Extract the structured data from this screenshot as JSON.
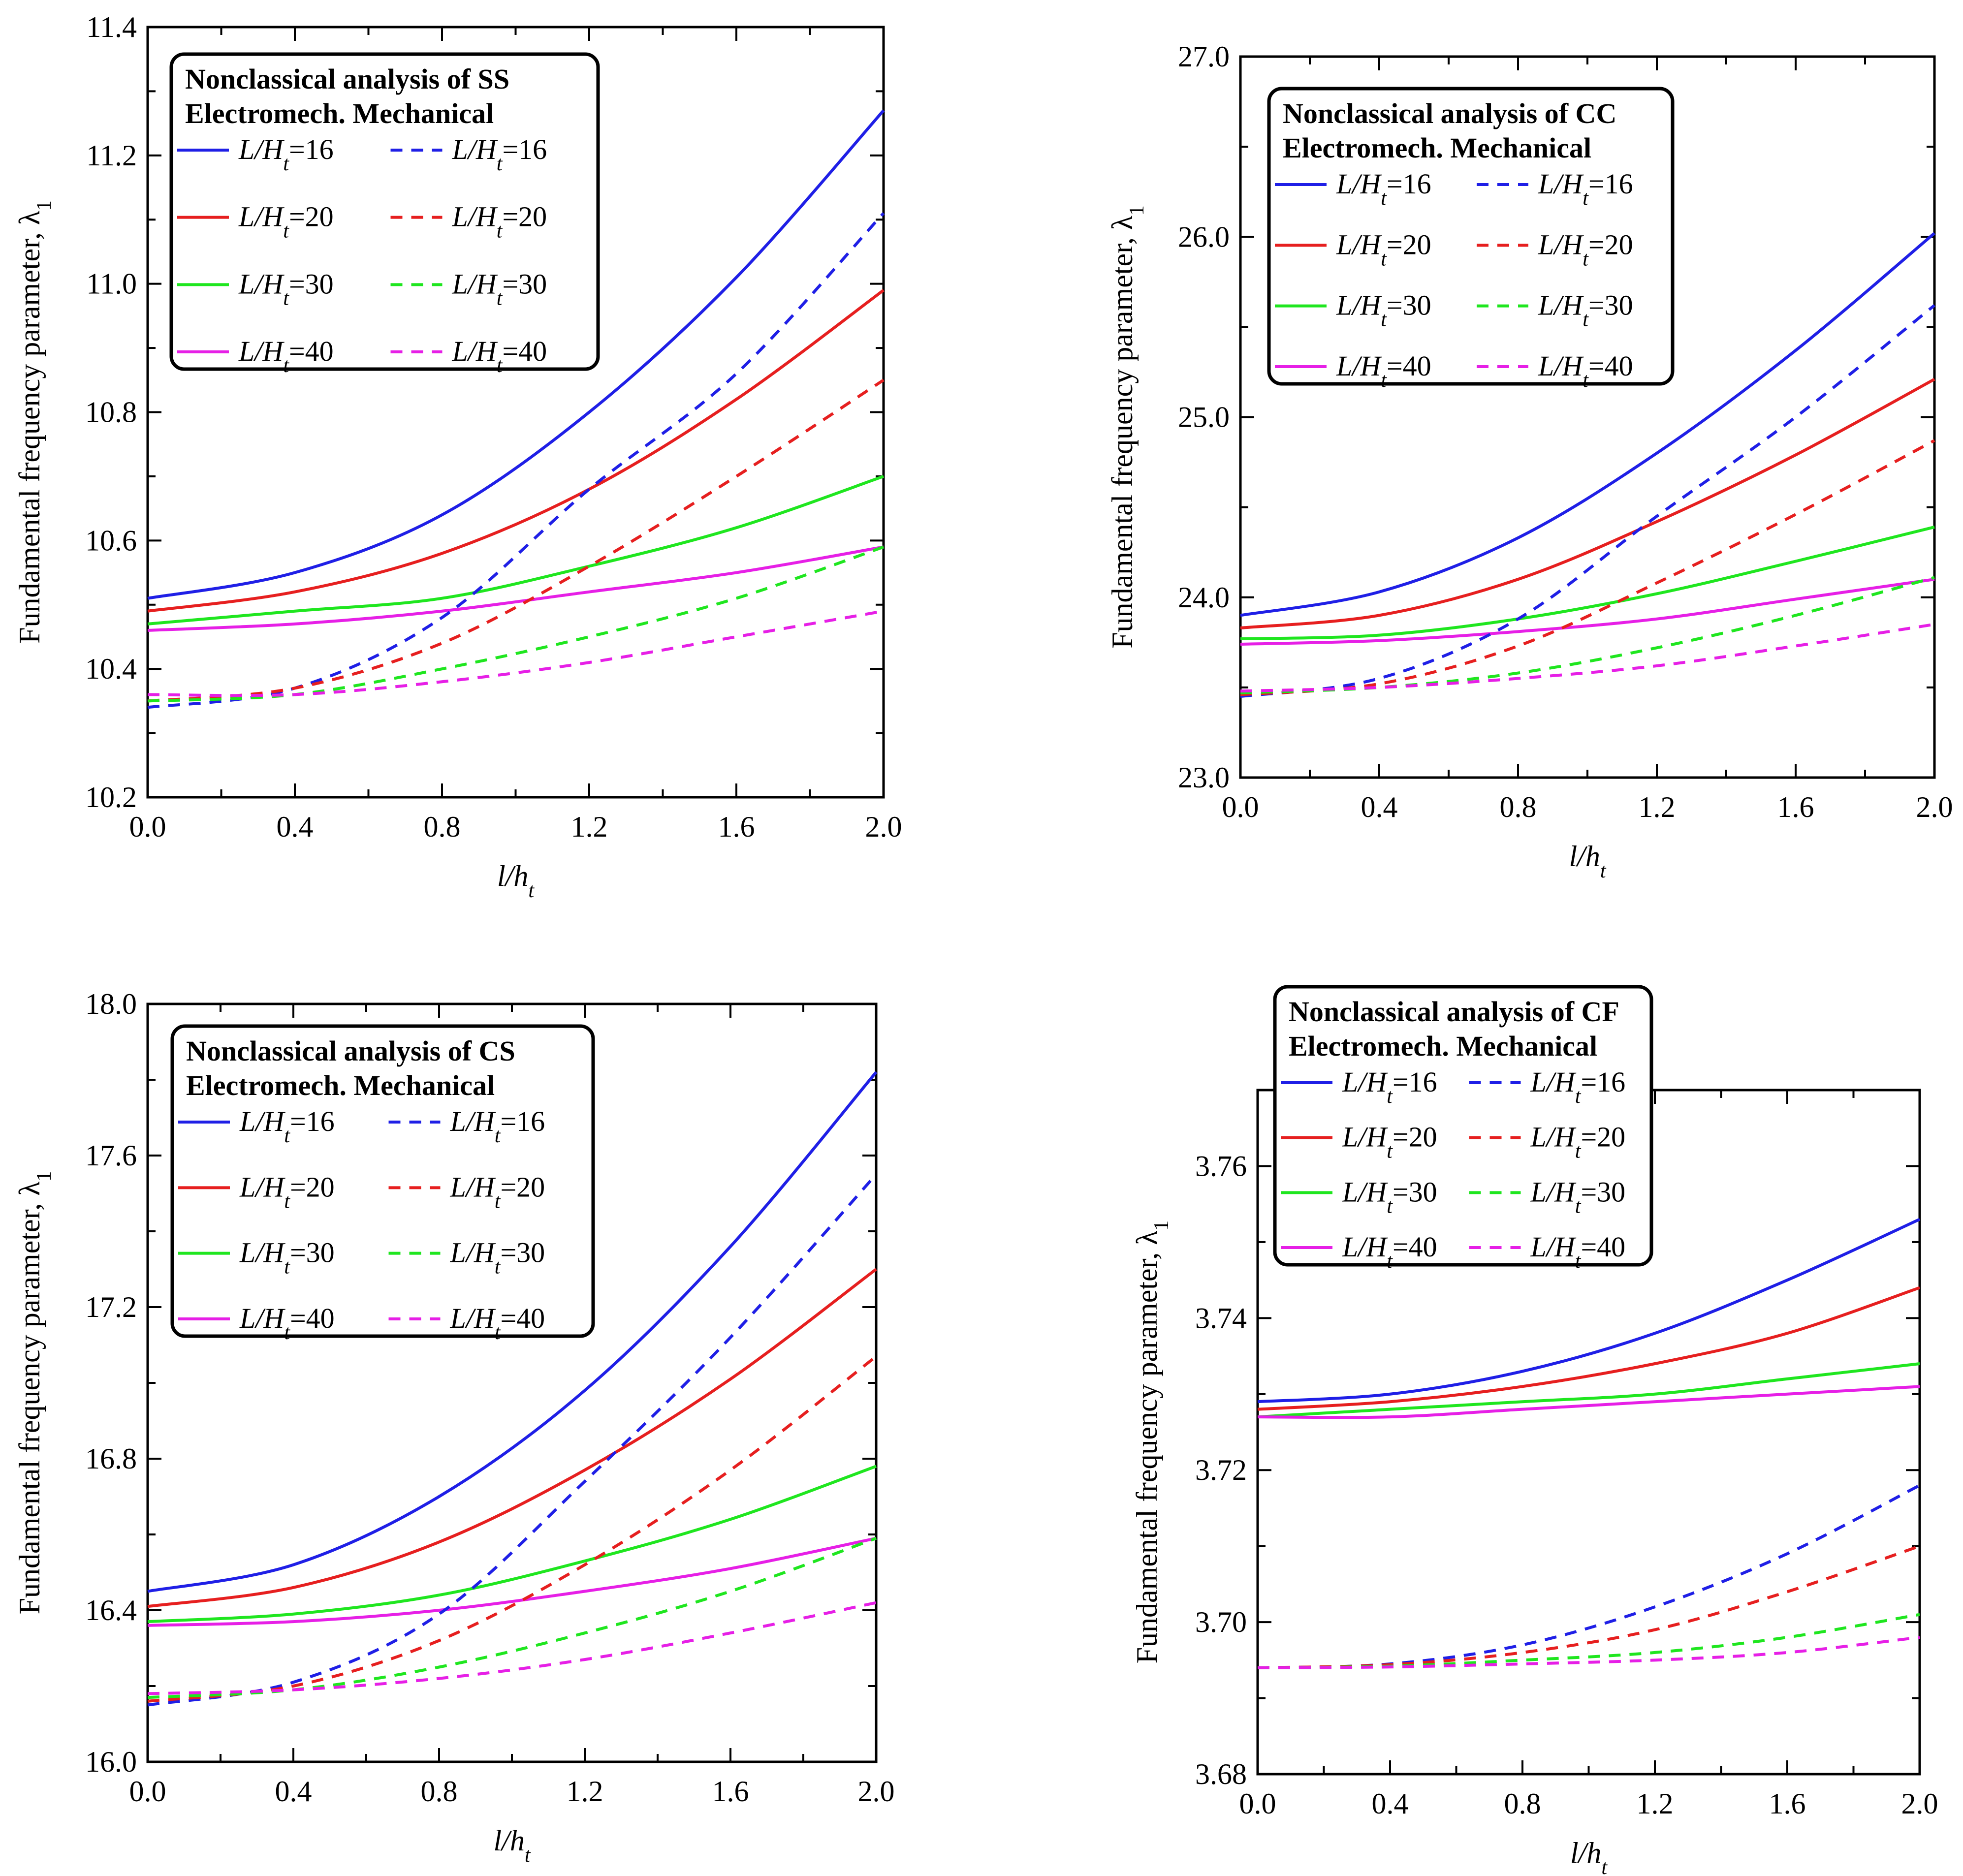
{
  "figure": {
    "y_axis_label": "Fundamental frequency parameter, λ",
    "y_axis_label_sub": "1",
    "x_axis_label": "l/h",
    "x_axis_label_sub": "t",
    "legend_col_headers": "Electromech. Mechanical",
    "legend_prefix": "L/H",
    "legend_prefix_sub": "t",
    "colors": {
      "16": "#1f1fe6",
      "20": "#e61f1f",
      "30": "#1fe61f",
      "40": "#e61fe6"
    }
  },
  "chart_data": [
    {
      "type": "line",
      "title": "Nonclassical analysis of SS",
      "xlabel": "l/h_t",
      "ylabel": "Fundamental frequency parameter, λ_1",
      "xlim": [
        0.0,
        2.0
      ],
      "ylim": [
        10.2,
        11.4
      ],
      "xticks": [
        "0.0",
        "0.4",
        "0.8",
        "1.2",
        "1.6",
        "2.0"
      ],
      "yticks": [
        "10.2",
        "10.4",
        "10.6",
        "10.8",
        "11.0",
        "11.2",
        "11.4"
      ],
      "x": [
        0.0,
        0.4,
        0.8,
        1.2,
        1.6,
        2.0
      ],
      "series": [
        {
          "name": "L/Ht=16",
          "ratio": "16",
          "style": "solid",
          "values": [
            10.51,
            10.55,
            10.64,
            10.8,
            11.01,
            11.27
          ]
        },
        {
          "name": "L/Ht=20",
          "ratio": "20",
          "style": "solid",
          "values": [
            10.49,
            10.52,
            10.58,
            10.68,
            10.82,
            10.99
          ]
        },
        {
          "name": "L/Ht=30",
          "ratio": "30",
          "style": "solid",
          "values": [
            10.47,
            10.49,
            10.51,
            10.56,
            10.62,
            10.7
          ]
        },
        {
          "name": "L/Ht=40",
          "ratio": "40",
          "style": "solid",
          "values": [
            10.46,
            10.47,
            10.49,
            10.52,
            10.55,
            10.59
          ]
        },
        {
          "name": "L/Ht=16",
          "ratio": "16",
          "style": "dashed",
          "values": [
            10.34,
            10.37,
            10.48,
            10.68,
            10.86,
            11.11
          ]
        },
        {
          "name": "L/Ht=20",
          "ratio": "20",
          "style": "dashed",
          "values": [
            10.35,
            10.37,
            10.44,
            10.56,
            10.7,
            10.85
          ]
        },
        {
          "name": "L/Ht=30",
          "ratio": "30",
          "style": "dashed",
          "values": [
            10.35,
            10.36,
            10.4,
            10.45,
            10.51,
            10.59
          ]
        },
        {
          "name": "L/Ht=40",
          "ratio": "40",
          "style": "dashed",
          "values": [
            10.36,
            10.36,
            10.38,
            10.41,
            10.45,
            10.49
          ]
        }
      ]
    },
    {
      "type": "line",
      "title": "Nonclassical analysis of CC",
      "xlabel": "l/h_t",
      "ylabel": "Fundamental frequency parameter, λ_1",
      "xlim": [
        0.0,
        2.0
      ],
      "ylim": [
        23.0,
        27.0
      ],
      "xticks": [
        "0.0",
        "0.4",
        "0.8",
        "1.2",
        "1.6",
        "2.0"
      ],
      "yticks": [
        "23.0",
        "24.0",
        "25.0",
        "26.0",
        "27.0"
      ],
      "x": [
        0.0,
        0.4,
        0.8,
        1.2,
        1.6,
        2.0
      ],
      "series": [
        {
          "name": "L/Ht=16",
          "ratio": "16",
          "style": "solid",
          "values": [
            23.9,
            24.03,
            24.33,
            24.8,
            25.37,
            26.02
          ]
        },
        {
          "name": "L/Ht=20",
          "ratio": "20",
          "style": "solid",
          "values": [
            23.83,
            23.9,
            24.1,
            24.42,
            24.79,
            25.21
          ]
        },
        {
          "name": "L/Ht=30",
          "ratio": "30",
          "style": "solid",
          "values": [
            23.77,
            23.79,
            23.88,
            24.02,
            24.2,
            24.39
          ]
        },
        {
          "name": "L/Ht=40",
          "ratio": "40",
          "style": "solid",
          "values": [
            23.74,
            23.76,
            23.81,
            23.88,
            23.99,
            24.1
          ]
        },
        {
          "name": "L/Ht=16",
          "ratio": "16",
          "style": "dashed",
          "values": [
            23.45,
            23.55,
            23.88,
            24.45,
            25.0,
            25.62
          ]
        },
        {
          "name": "L/Ht=20",
          "ratio": "20",
          "style": "dashed",
          "values": [
            23.46,
            23.52,
            23.73,
            24.08,
            24.46,
            24.87
          ]
        },
        {
          "name": "L/Ht=30",
          "ratio": "30",
          "style": "dashed",
          "values": [
            23.47,
            23.5,
            23.58,
            23.72,
            23.9,
            24.11
          ]
        },
        {
          "name": "L/Ht=40",
          "ratio": "40",
          "style": "dashed",
          "values": [
            23.48,
            23.5,
            23.55,
            23.62,
            23.73,
            23.85
          ]
        }
      ]
    },
    {
      "type": "line",
      "title": "Nonclassical analysis of CS",
      "xlabel": "l/h_t",
      "ylabel": "Fundamental frequency parameter, λ_1",
      "xlim": [
        0.0,
        2.0
      ],
      "ylim": [
        16.0,
        18.0
      ],
      "xticks": [
        "0.0",
        "0.4",
        "0.8",
        "1.2",
        "1.6",
        "2.0"
      ],
      "yticks": [
        "16.0",
        "16.4",
        "16.8",
        "17.2",
        "17.6",
        "18.0"
      ],
      "x": [
        0.0,
        0.4,
        0.8,
        1.2,
        1.6,
        2.0
      ],
      "series": [
        {
          "name": "L/Ht=16",
          "ratio": "16",
          "style": "solid",
          "values": [
            16.45,
            16.52,
            16.7,
            16.98,
            17.36,
            17.82
          ]
        },
        {
          "name": "L/Ht=20",
          "ratio": "20",
          "style": "solid",
          "values": [
            16.41,
            16.46,
            16.58,
            16.77,
            17.01,
            17.3
          ]
        },
        {
          "name": "L/Ht=30",
          "ratio": "30",
          "style": "solid",
          "values": [
            16.37,
            16.39,
            16.44,
            16.53,
            16.64,
            16.78
          ]
        },
        {
          "name": "L/Ht=40",
          "ratio": "40",
          "style": "solid",
          "values": [
            16.36,
            16.37,
            16.4,
            16.45,
            16.51,
            16.59
          ]
        },
        {
          "name": "L/Ht=16",
          "ratio": "16",
          "style": "dashed",
          "values": [
            16.15,
            16.21,
            16.39,
            16.74,
            17.12,
            17.55
          ]
        },
        {
          "name": "L/Ht=20",
          "ratio": "20",
          "style": "dashed",
          "values": [
            16.16,
            16.2,
            16.32,
            16.52,
            16.77,
            17.07
          ]
        },
        {
          "name": "L/Ht=30",
          "ratio": "30",
          "style": "dashed",
          "values": [
            16.17,
            16.19,
            16.25,
            16.34,
            16.45,
            16.59
          ]
        },
        {
          "name": "L/Ht=40",
          "ratio": "40",
          "style": "dashed",
          "values": [
            16.18,
            16.19,
            16.22,
            16.27,
            16.34,
            16.42
          ]
        }
      ]
    },
    {
      "type": "line",
      "title": "Nonclassical analysis of CF",
      "xlabel": "l/h_t",
      "ylabel": "Fundamental frequency parameter, λ_1",
      "xlim": [
        0.0,
        2.0
      ],
      "ylim": [
        3.68,
        3.77
      ],
      "xticks": [
        "0.0",
        "0.4",
        "0.8",
        "1.2",
        "1.6",
        "2.0"
      ],
      "yticks": [
        "3.68",
        "3.70",
        "3.72",
        "3.74",
        "3.76"
      ],
      "x": [
        0.0,
        0.4,
        0.8,
        1.2,
        1.6,
        2.0
      ],
      "series": [
        {
          "name": "L/Ht=16",
          "ratio": "16",
          "style": "solid",
          "values": [
            3.729,
            3.73,
            3.733,
            3.738,
            3.745,
            3.753
          ]
        },
        {
          "name": "L/Ht=20",
          "ratio": "20",
          "style": "solid",
          "values": [
            3.728,
            3.729,
            3.731,
            3.734,
            3.738,
            3.744
          ]
        },
        {
          "name": "L/Ht=30",
          "ratio": "30",
          "style": "solid",
          "values": [
            3.727,
            3.728,
            3.729,
            3.73,
            3.732,
            3.734
          ]
        },
        {
          "name": "L/Ht=40",
          "ratio": "40",
          "style": "solid",
          "values": [
            3.727,
            3.727,
            3.728,
            3.729,
            3.73,
            3.731
          ]
        },
        {
          "name": "L/Ht=16",
          "ratio": "16",
          "style": "dashed",
          "values": [
            3.694,
            3.6945,
            3.697,
            3.702,
            3.709,
            3.718
          ]
        },
        {
          "name": "L/Ht=20",
          "ratio": "20",
          "style": "dashed",
          "values": [
            3.694,
            3.6944,
            3.696,
            3.699,
            3.704,
            3.71
          ]
        },
        {
          "name": "L/Ht=30",
          "ratio": "30",
          "style": "dashed",
          "values": [
            3.694,
            3.6942,
            3.695,
            3.696,
            3.698,
            3.701
          ]
        },
        {
          "name": "L/Ht=40",
          "ratio": "40",
          "style": "dashed",
          "values": [
            3.694,
            3.6941,
            3.6945,
            3.695,
            3.696,
            3.698
          ]
        }
      ]
    }
  ]
}
